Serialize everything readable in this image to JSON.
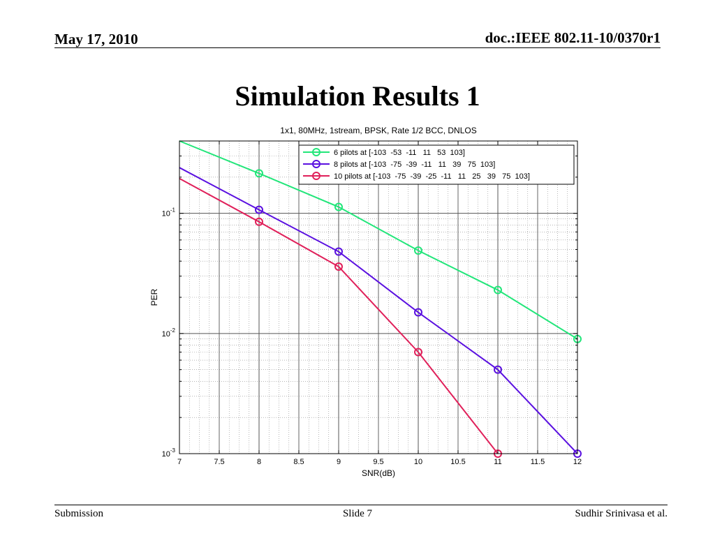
{
  "header": {
    "date": "May 17, 2010",
    "doc": "doc.:IEEE 802.11-10/0370r1"
  },
  "slide": {
    "title": "Simulation Results 1"
  },
  "footer": {
    "left": "Submission",
    "center": "Slide 7",
    "right": "Sudhir Srinivasa et al."
  },
  "chart_data": {
    "type": "line",
    "title": "1x1, 80MHz, 1stream, BPSK, Rate 1/2 BCC, DNLOS",
    "xlabel": "SNR(dB)",
    "ylabel": "PER",
    "xlim": [
      7,
      12
    ],
    "ylim": [
      0.001,
      0.5
    ],
    "yscale": "log",
    "grid": true,
    "legend_position": "top-right",
    "xticks": [
      "7",
      "7.5",
      "8",
      "8.5",
      "9",
      "9.5",
      "10",
      "10.5",
      "11",
      "11.5",
      "12"
    ],
    "xtick_values": [
      7,
      7.5,
      8,
      8.5,
      9,
      9.5,
      10,
      10.5,
      11,
      11.5,
      12
    ],
    "yticks": [
      {
        "value": 0.1,
        "base": "10",
        "exp": "-1"
      },
      {
        "value": 0.01,
        "base": "10",
        "exp": "-2"
      },
      {
        "value": 0.001,
        "base": "10",
        "exp": "-3"
      }
    ],
    "series": [
      {
        "name": "6 pilots at [-103  -53  -11   11   53  103]",
        "color": "#22e67a",
        "line_x": [
          7,
          8,
          9,
          10,
          11,
          12
        ],
        "line_y": [
          0.4,
          0.215,
          0.113,
          0.049,
          0.023,
          0.009
        ],
        "marker_x": [
          8,
          9,
          10,
          11,
          12
        ],
        "marker_y": [
          0.215,
          0.113,
          0.049,
          0.023,
          0.009
        ]
      },
      {
        "name": "8 pilots at [-103  -75  -39  -11   11   39   75  103]",
        "color": "#5a10e0",
        "line_x": [
          7,
          8,
          9,
          10,
          11,
          12
        ],
        "line_y": [
          0.24,
          0.107,
          0.048,
          0.015,
          0.005,
          0.001
        ],
        "marker_x": [
          8,
          9,
          10,
          11,
          12
        ],
        "marker_y": [
          0.107,
          0.048,
          0.015,
          0.005,
          0.001
        ]
      },
      {
        "name": "10 pilots at [-103  -75  -39  -25  -11   11   25   39   75  103]",
        "color": "#e0205a",
        "line_x": [
          7,
          8,
          9,
          10,
          11
        ],
        "line_y": [
          0.195,
          0.085,
          0.036,
          0.007,
          0.001
        ],
        "marker_x": [
          8,
          9,
          10,
          11
        ],
        "marker_y": [
          0.085,
          0.036,
          0.007,
          0.001
        ]
      }
    ]
  }
}
